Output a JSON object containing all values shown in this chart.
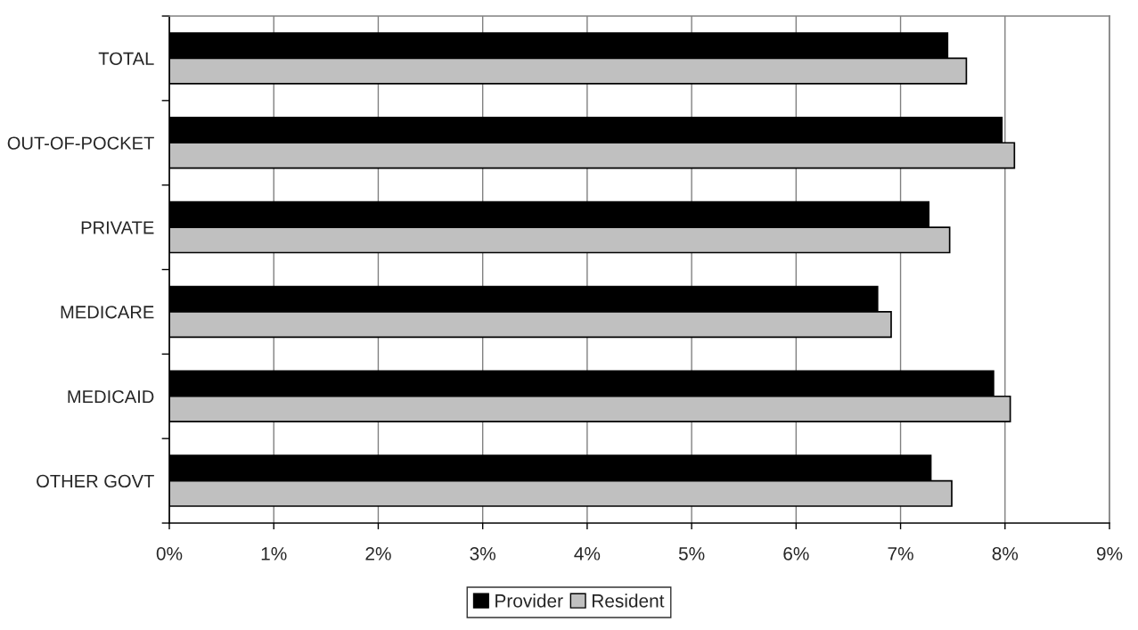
{
  "chart_data": {
    "type": "bar",
    "orientation": "horizontal",
    "categories": [
      "TOTAL",
      "OUT-OF-POCKET",
      "PRIVATE",
      "MEDICARE",
      "MEDICAID",
      "OTHER GOVT"
    ],
    "series": [
      {
        "name": "Provider",
        "color": "#000000",
        "values": [
          7.45,
          7.97,
          7.27,
          6.78,
          7.89,
          7.29
        ]
      },
      {
        "name": "Resident",
        "color": "#c0c0c0",
        "values": [
          7.63,
          8.09,
          7.47,
          6.91,
          8.05,
          7.49
        ]
      }
    ],
    "xlim": [
      0,
      9
    ],
    "xticks": [
      {
        "value": 0,
        "label": "0%"
      },
      {
        "value": 1,
        "label": "1%"
      },
      {
        "value": 2,
        "label": "2%"
      },
      {
        "value": 3,
        "label": "3%"
      },
      {
        "value": 4,
        "label": "4%"
      },
      {
        "value": 5,
        "label": "5%"
      },
      {
        "value": 6,
        "label": "6%"
      },
      {
        "value": 7,
        "label": "7%"
      },
      {
        "value": 8,
        "label": "8%"
      },
      {
        "value": 9,
        "label": "9%"
      }
    ],
    "grid": "x",
    "legend": "bottom"
  }
}
